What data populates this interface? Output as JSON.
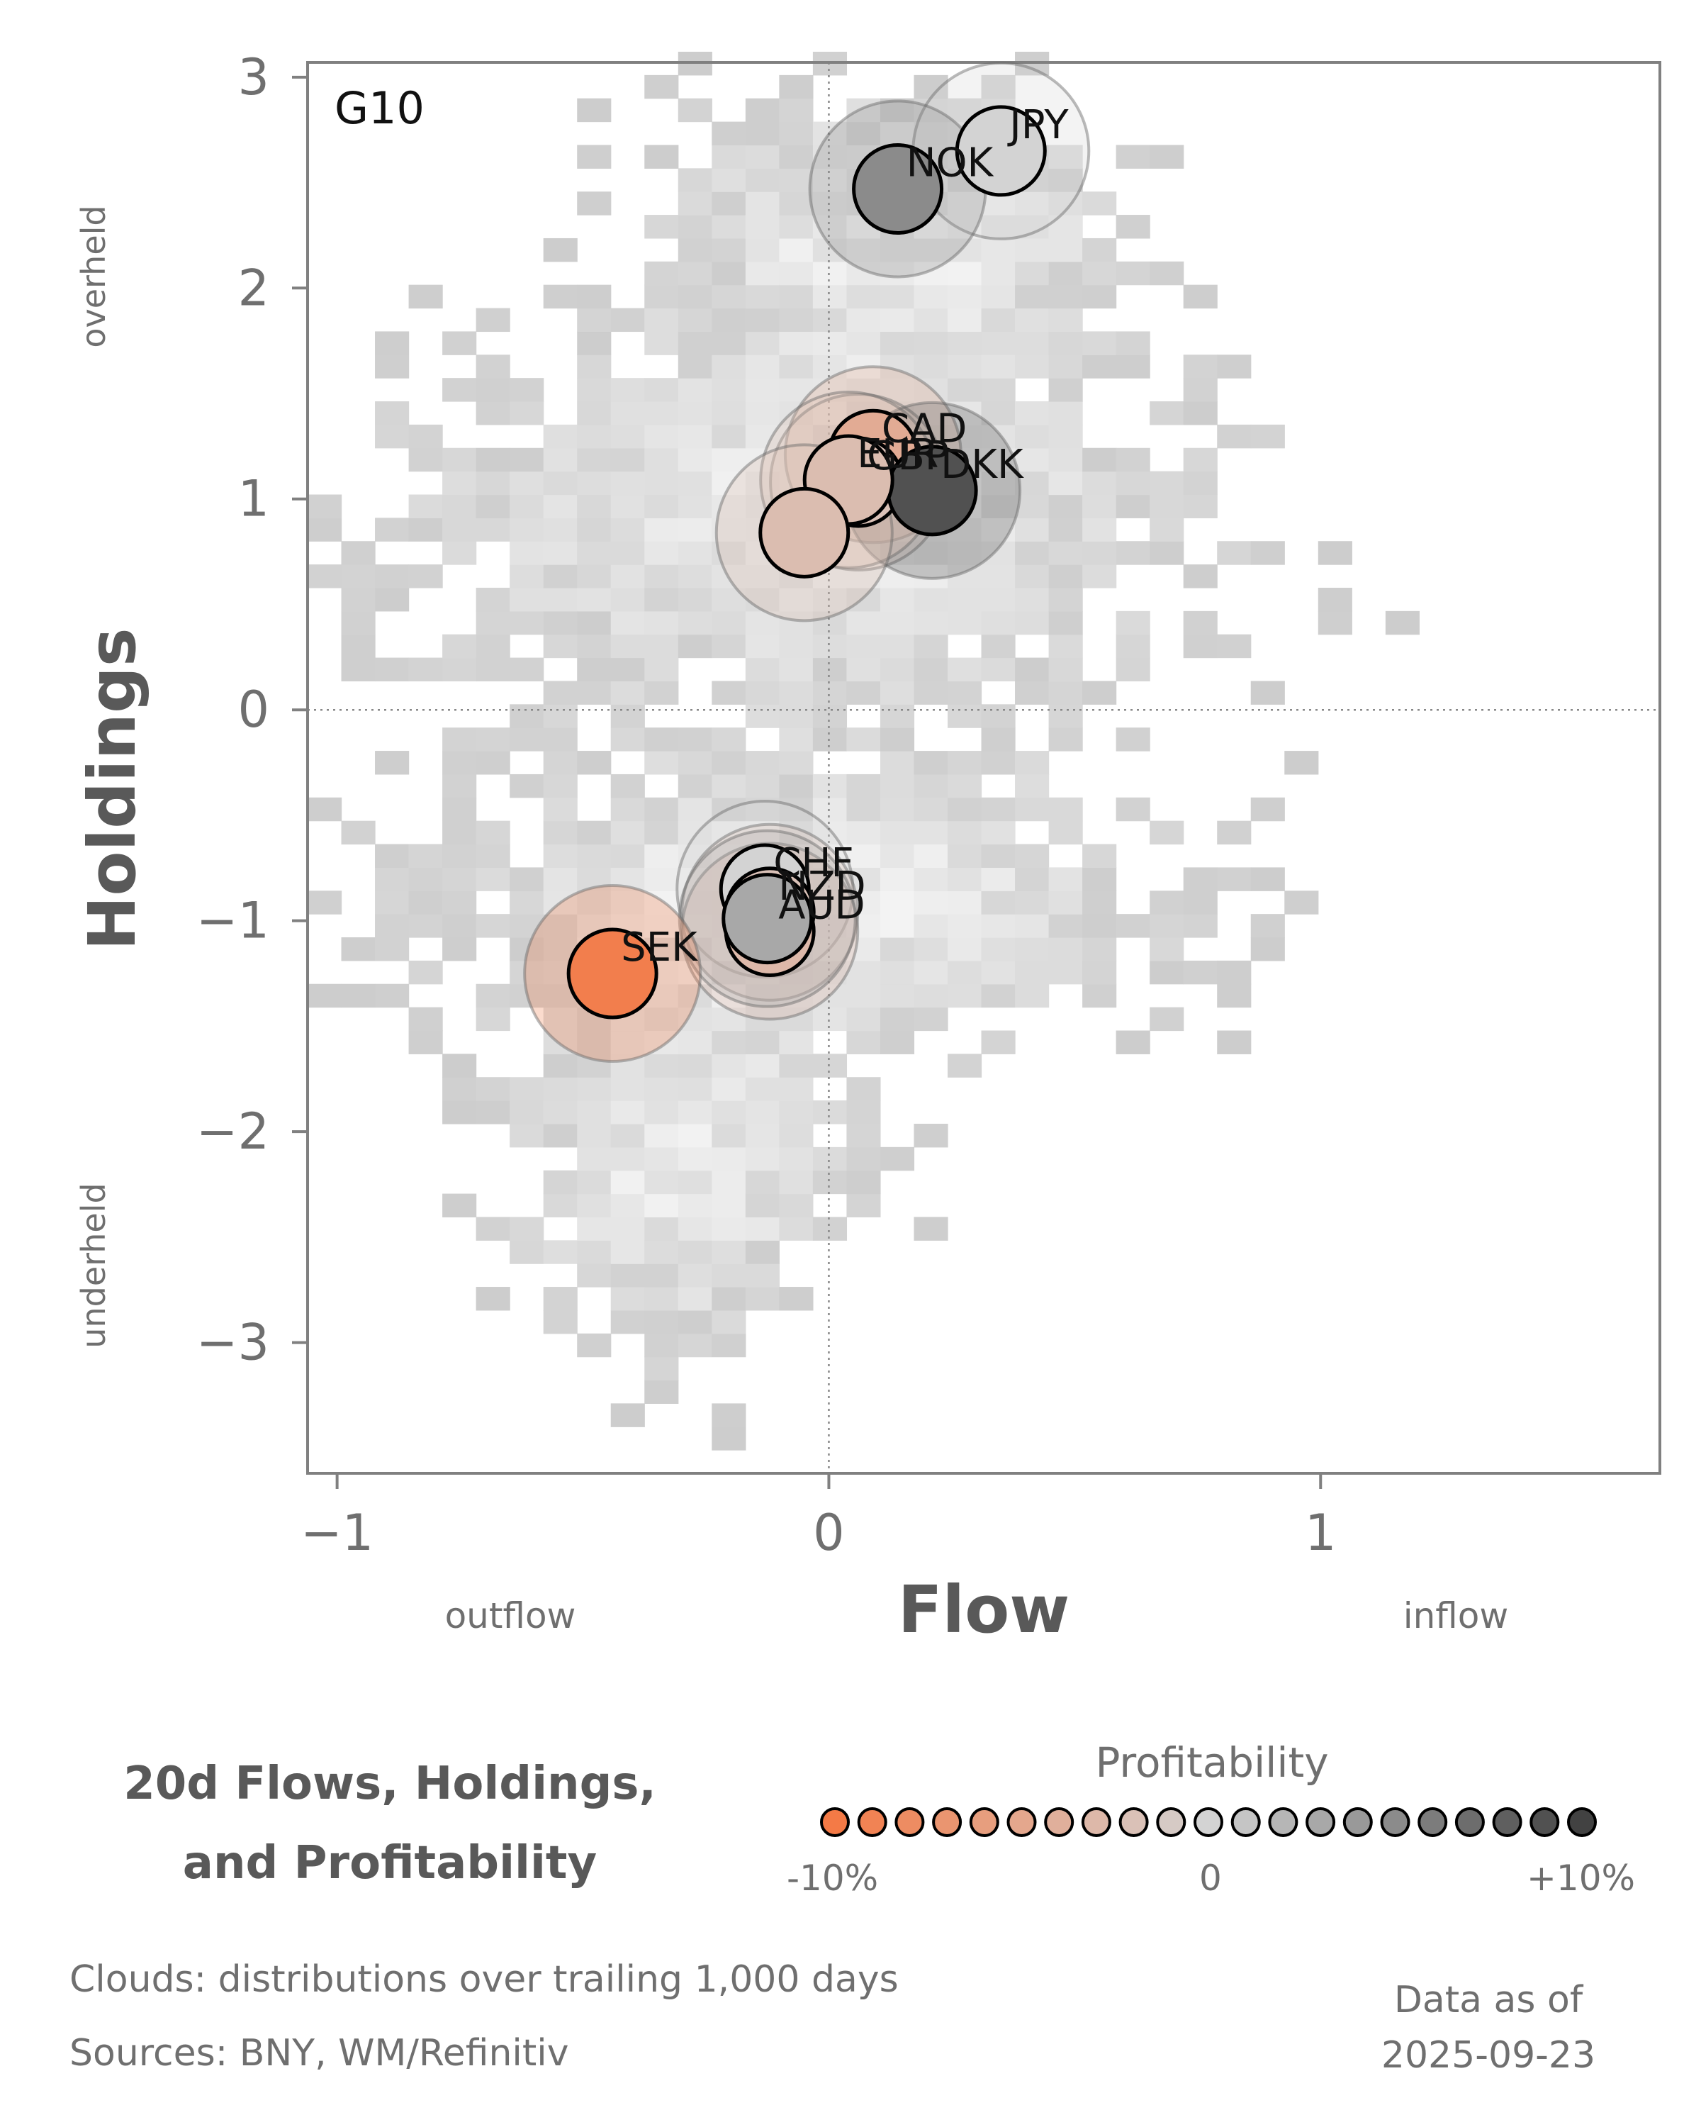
{
  "chart_data": {
    "type": "scatter",
    "panel_label": "G10",
    "xlabel": "Flow",
    "ylabel": "Holdings",
    "x_side_labels": {
      "left": "outflow",
      "right": "inflow"
    },
    "y_side_labels": {
      "top": "overheld",
      "bottom": "underheld"
    },
    "xlim": [
      -1.06,
      1.69
    ],
    "ylim": [
      -3.62,
      3.07
    ],
    "xticks": [
      -1,
      0,
      1
    ],
    "xtick_labels": [
      "−1",
      "0",
      "1"
    ],
    "yticks": [
      3,
      2,
      1,
      0,
      -1,
      -2,
      -3
    ],
    "ytick_labels": [
      "3",
      "2",
      "1",
      "0",
      "−1",
      "−2",
      "−3"
    ],
    "reference_lines": {
      "x": 0,
      "y": 0,
      "style": "dotted"
    },
    "points": [
      {
        "label": "JPY",
        "x": 0.35,
        "y": 2.65,
        "profitability": 0.0
      },
      {
        "label": "NOK",
        "x": 0.14,
        "y": 2.47,
        "profitability": 0.05
      },
      {
        "label": "CAD",
        "x": 0.09,
        "y": 1.21,
        "profitability": -0.045
      },
      {
        "label": "GBP",
        "x": 0.06,
        "y": 1.08,
        "profitability": -0.02
      },
      {
        "label": "DKK",
        "x": 0.21,
        "y": 1.04,
        "profitability": 0.09
      },
      {
        "label": "EUR",
        "x": 0.04,
        "y": 1.09,
        "profitability": -0.025
      },
      {
        "label": "",
        "x": -0.05,
        "y": 0.84,
        "profitability": -0.025
      },
      {
        "label": "CHF",
        "x": -0.13,
        "y": -0.85,
        "profitability": 0.0
      },
      {
        "label": "NZD",
        "x": -0.12,
        "y": -0.96,
        "profitability": -0.02
      },
      {
        "label": "AUD",
        "x": -0.12,
        "y": -1.05,
        "profitability": -0.03
      },
      {
        "label": "",
        "x": -0.125,
        "y": -0.99,
        "profitability": 0.03
      },
      {
        "label": "SEK",
        "x": -0.44,
        "y": -1.25,
        "profitability": -0.095
      }
    ],
    "clouds": {
      "description_key": "footer.clouds",
      "clusters": [
        {
          "cx": 0.15,
          "cy": 2.3,
          "sx": 0.3,
          "sy": 0.45
        },
        {
          "cx": -0.05,
          "cy": 0.9,
          "sx": 0.55,
          "sy": 0.6
        },
        {
          "cx": -0.05,
          "cy": -0.9,
          "sx": 0.5,
          "sy": 0.45
        },
        {
          "cx": -0.3,
          "cy": -2.2,
          "sx": 0.22,
          "sy": 0.55
        }
      ]
    },
    "legend": {
      "title": "Profitability",
      "min": -0.1,
      "max": 0.1,
      "steps": 21,
      "tick_labels": [
        "-10%",
        "0",
        "+10%"
      ],
      "color_low": "#f47a46",
      "color_mid": "#d3d3d3",
      "color_high": "#424242"
    }
  },
  "title": {
    "line1": "20d Flows, Holdings,",
    "line2": "and Profitability"
  },
  "footer": {
    "clouds": "Clouds:  distributions over trailing 1,000 days",
    "sources": "Sources:  BNY, WM/Refinitiv",
    "date_label": "Data as of",
    "date_value": "2025-09-23"
  }
}
